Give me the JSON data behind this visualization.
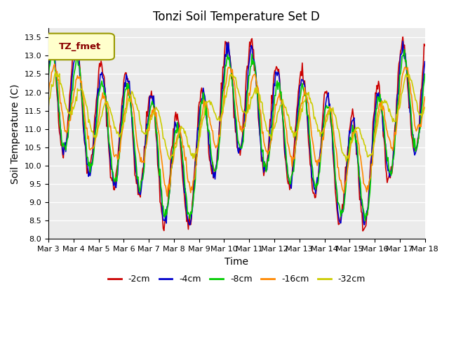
{
  "title": "Tonzi Soil Temperature Set D",
  "xlabel": "Time",
  "ylabel": "Soil Temperature (C)",
  "ylim": [
    8.0,
    13.75
  ],
  "yticks": [
    8.0,
    8.5,
    9.0,
    9.5,
    10.0,
    10.5,
    11.0,
    11.5,
    12.0,
    12.5,
    13.0,
    13.5
  ],
  "x_labels": [
    "Mar 3",
    "Mar 4",
    "Mar 5",
    "Mar 6",
    "Mar 7",
    "Mar 8",
    "Mar 9",
    "Mar 10",
    "Mar 11",
    "Mar 12",
    "Mar 13",
    "Mar 14",
    "Mar 15",
    "Mar 16",
    "Mar 17",
    "Mar 18"
  ],
  "legend_label": "TZ_fmet",
  "series_labels": [
    "-2cm",
    "-4cm",
    "-8cm",
    "-16cm",
    "-32cm"
  ],
  "colors": [
    "#cc0000",
    "#0000cc",
    "#00cc00",
    "#ff8800",
    "#cccc00"
  ],
  "plot_bg": "#ebebeb",
  "n_points": 480,
  "days": 15
}
